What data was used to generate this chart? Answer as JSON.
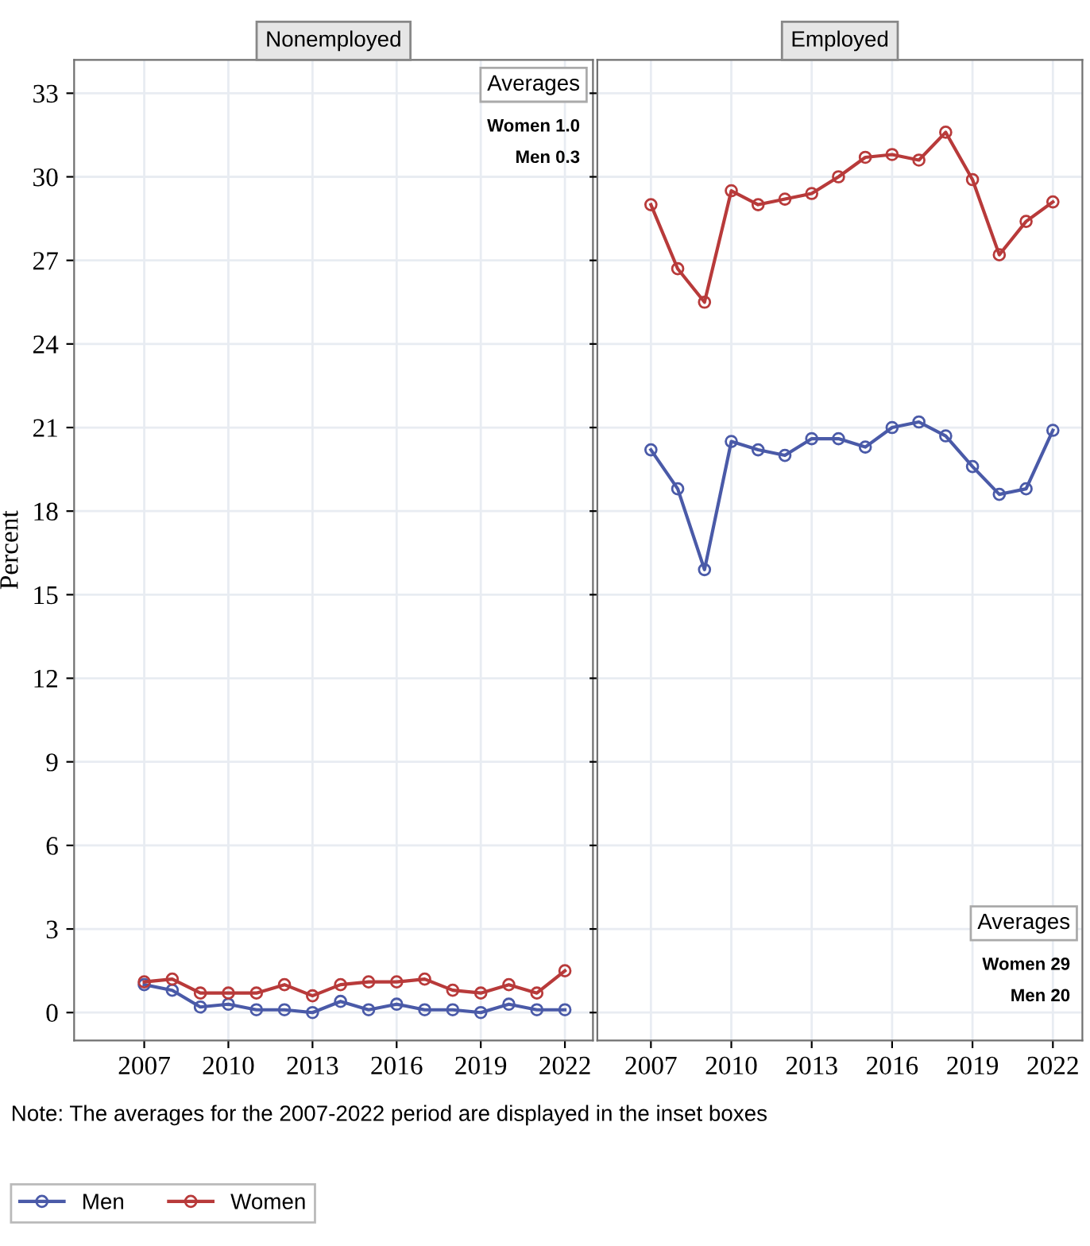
{
  "chart_data": [
    {
      "type": "line",
      "title": "Nonemployed",
      "ylabel": "Percent",
      "x": [
        2007,
        2008,
        2009,
        2010,
        2011,
        2012,
        2013,
        2014,
        2015,
        2016,
        2017,
        2018,
        2019,
        2020,
        2021,
        2022
      ],
      "series": [
        {
          "name": "Men",
          "color": "#4a5aa8",
          "values": [
            1.0,
            0.8,
            0.2,
            0.3,
            0.1,
            0.1,
            0.0,
            0.4,
            0.1,
            0.3,
            0.1,
            0.1,
            0.0,
            0.3,
            0.1,
            0.1
          ]
        },
        {
          "name": "Women",
          "color": "#b83a3a",
          "values": [
            1.1,
            1.2,
            0.7,
            0.7,
            0.7,
            1.0,
            0.6,
            1.0,
            1.1,
            1.1,
            1.2,
            0.8,
            0.7,
            1.0,
            0.7,
            1.5
          ]
        }
      ],
      "xlim": [
        2004.5,
        2023
      ],
      "ylim": [
        -1,
        34.2
      ],
      "xticks": [
        2007,
        2010,
        2013,
        2016,
        2019,
        2022
      ],
      "yticks": [
        0,
        3,
        6,
        9,
        12,
        15,
        18,
        21,
        24,
        27,
        30,
        33
      ],
      "grid": true,
      "marker": "circle",
      "line_style": "solid",
      "legend": "bottom",
      "annotations": [
        "Averages",
        "Women 1.0",
        "Men 0.3",
        "Note: The averages for the 2007-2022 period are displayed in the inset boxes"
      ]
    },
    {
      "type": "line",
      "title": "Employed",
      "x": [
        2007,
        2008,
        2009,
        2010,
        2011,
        2012,
        2013,
        2014,
        2015,
        2016,
        2017,
        2018,
        2019,
        2020,
        2021,
        2022
      ],
      "series": [
        {
          "color": "#4a5aa8",
          "values": [
            20.2,
            18.8,
            15.9,
            20.5,
            20.2,
            20.0,
            20.6,
            20.6,
            20.3,
            21.0,
            21.2,
            20.7,
            19.6,
            18.6,
            18.8,
            20.9
          ]
        },
        {
          "color": "#b83a3a",
          "values": [
            29.0,
            26.7,
            25.5,
            29.5,
            29.0,
            29.2,
            29.4,
            30.0,
            30.7,
            30.8,
            30.6,
            31.6,
            29.9,
            27.2,
            28.4,
            29.1
          ]
        }
      ],
      "xlim": [
        2005,
        2023.1
      ],
      "ylim": [
        -1,
        34.2
      ],
      "xticks": [
        2007,
        2010,
        2013,
        2016,
        2019,
        2022
      ],
      "yticks": [
        0,
        3,
        6,
        9,
        12,
        15,
        18,
        21,
        24,
        27,
        30,
        33
      ],
      "grid": true,
      "marker": "circle",
      "line_style": "solid",
      "tick_labels": "x",
      "annotations": [
        "Averages",
        "Women 29",
        "Men 20"
      ]
    }
  ]
}
